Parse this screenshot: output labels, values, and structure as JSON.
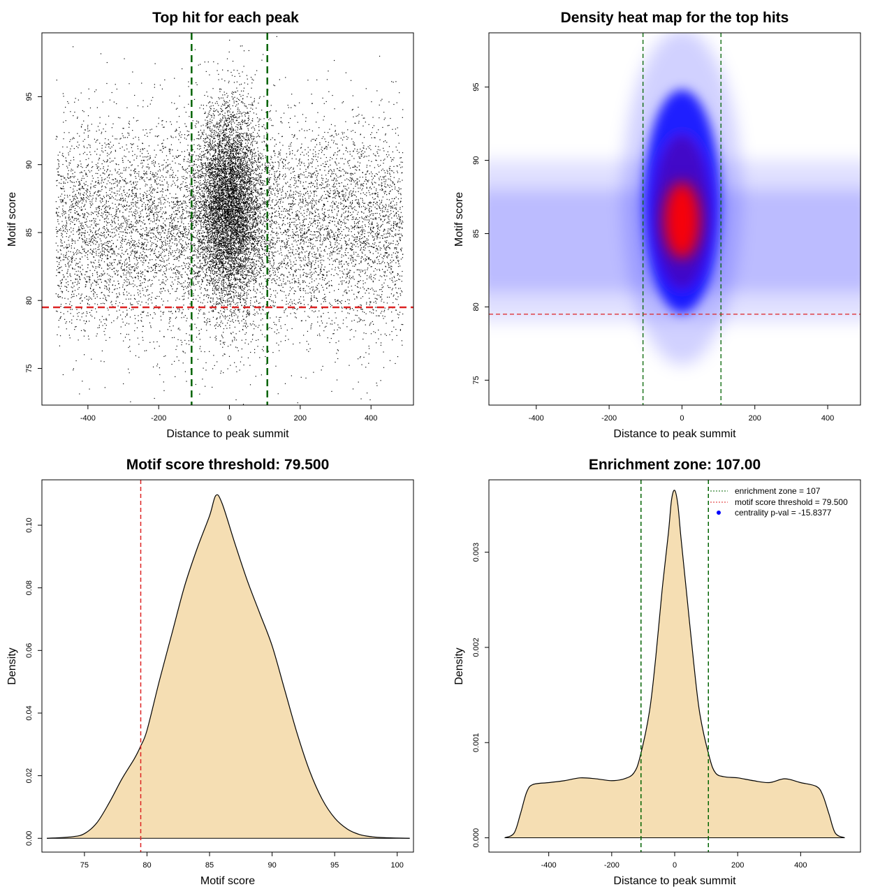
{
  "chart_data": [
    {
      "id": "scatter",
      "type": "scatter",
      "title": "Top hit for each peak",
      "xlabel": "Distance to peak summit",
      "ylabel": "Motif score",
      "xlim": [
        -530,
        520
      ],
      "ylim": [
        72.3,
        99.7
      ],
      "xticks": [
        "-400",
        "-200",
        "0",
        "200",
        "400"
      ],
      "xtick_values": [
        -400,
        -200,
        0,
        200,
        400
      ],
      "yticks": [
        "75",
        "80",
        "85",
        "90",
        "95"
      ],
      "ytick_values": [
        75,
        80,
        85,
        90,
        95
      ],
      "point_color": "#000000",
      "point_cloud": {
        "background": {
          "x_range": [
            -490,
            490
          ],
          "y_mean": 85.3,
          "y_sd": 3.9,
          "count": 9000
        },
        "center": {
          "x_mean": 0,
          "x_sd": 45,
          "y_mean": 87.0,
          "y_sd": 3.6,
          "count": 6500
        }
      },
      "vlines": [
        {
          "x": -107,
          "color": "#006400",
          "style": "dashed"
        },
        {
          "x": 107,
          "color": "#006400",
          "style": "dashed"
        }
      ],
      "hlines": [
        {
          "y": 79.5,
          "color": "#dd2222",
          "style": "dashed"
        }
      ]
    },
    {
      "id": "heatmap",
      "type": "heatmap",
      "title": "Density heat map for the top hits",
      "xlabel": "Distance to peak summit",
      "ylabel": "Motif score",
      "xlim": [
        -530,
        490
      ],
      "ylim": [
        73.3,
        98.7
      ],
      "xticks": [
        "-400",
        "-200",
        "0",
        "200",
        "400"
      ],
      "xtick_values": [
        -400,
        -200,
        0,
        200,
        400
      ],
      "yticks": [
        "75",
        "80",
        "85",
        "90",
        "95"
      ],
      "ytick_values": [
        75,
        80,
        85,
        90,
        95
      ],
      "colors": {
        "low": "#ffffff",
        "mid": "#0000ff",
        "high": "#ff0000"
      },
      "density_peak": {
        "x": 0,
        "y": 85.9
      },
      "vlines": [
        {
          "x": -107,
          "color": "#006400",
          "style": "dashed"
        },
        {
          "x": 107,
          "color": "#006400",
          "style": "dashed"
        }
      ],
      "hlines": [
        {
          "y": 79.5,
          "color": "#dd2222",
          "style": "dashed"
        }
      ]
    },
    {
      "id": "score_density",
      "type": "area",
      "title": "Motif score threshold: 79.500",
      "xlabel": "Motif score",
      "ylabel": "Density",
      "xlim": [
        71.6,
        101.3
      ],
      "ylim": [
        -0.0044,
        0.1145
      ],
      "xticks": [
        "75",
        "80",
        "85",
        "90",
        "95",
        "100"
      ],
      "xtick_values": [
        75,
        80,
        85,
        90,
        95,
        100
      ],
      "yticks": [
        "0.00",
        "0.02",
        "0.04",
        "0.06",
        "0.08",
        "0.10"
      ],
      "ytick_values": [
        0.0,
        0.02,
        0.04,
        0.06,
        0.08,
        0.1
      ],
      "fill_color": "#f5deb3",
      "x": [
        72,
        74,
        75,
        76,
        77,
        78,
        79,
        79.5,
        80,
        81,
        82,
        83,
        84,
        85,
        85.5,
        86,
        87,
        88,
        89,
        90,
        91,
        92,
        93,
        94,
        95,
        96,
        97,
        98,
        99,
        100,
        101
      ],
      "y": [
        0.0,
        0.0005,
        0.0015,
        0.005,
        0.0115,
        0.019,
        0.0255,
        0.0295,
        0.0345,
        0.0505,
        0.0655,
        0.0805,
        0.0925,
        0.103,
        0.1095,
        0.107,
        0.0945,
        0.0825,
        0.072,
        0.0615,
        0.0475,
        0.0335,
        0.0215,
        0.0125,
        0.0065,
        0.003,
        0.0012,
        0.0005,
        0.0002,
        0.0001,
        0.0
      ],
      "vlines": [
        {
          "x": 79.5,
          "color": "#dd2222",
          "style": "dashed"
        }
      ]
    },
    {
      "id": "distance_density",
      "type": "area",
      "title": "Enrichment zone: 107.00",
      "xlabel": "Distance to peak summit",
      "ylabel": "Density",
      "xlim": [
        -590,
        590
      ],
      "ylim": [
        -0.00015,
        0.00376
      ],
      "xticks": [
        "-400",
        "-200",
        "0",
        "200",
        "400"
      ],
      "xtick_values": [
        -400,
        -200,
        0,
        200,
        400
      ],
      "yticks": [
        "0.000",
        "0.001",
        "0.002",
        "0.003"
      ],
      "ytick_values": [
        0.0,
        0.001,
        0.002,
        0.003
      ],
      "fill_color": "#f5deb3",
      "x": [
        -540,
        -510,
        -490,
        -470,
        -450,
        -400,
        -350,
        -300,
        -250,
        -200,
        -160,
        -130,
        -110,
        -80,
        -60,
        -40,
        -20,
        -10,
        0,
        10,
        20,
        40,
        60,
        80,
        110,
        130,
        160,
        200,
        250,
        300,
        350,
        400,
        450,
        470,
        490,
        510,
        540
      ],
      "y": [
        0.0,
        5e-05,
        0.00025,
        0.00048,
        0.00056,
        0.00058,
        0.0006,
        0.00063,
        0.00062,
        0.0006,
        0.00062,
        0.00068,
        0.00085,
        0.00133,
        0.0019,
        0.0026,
        0.0032,
        0.00355,
        0.00365,
        0.0035,
        0.00315,
        0.0025,
        0.00185,
        0.0013,
        0.00085,
        0.00068,
        0.00064,
        0.00063,
        0.0006,
        0.00058,
        0.00062,
        0.00058,
        0.00054,
        0.00045,
        0.00025,
        5e-05,
        0.0
      ],
      "vlines": [
        {
          "x": -107,
          "color": "#006400",
          "style": "dashed"
        },
        {
          "x": 107,
          "color": "#006400",
          "style": "dashed"
        }
      ],
      "legend": {
        "position": "top-right",
        "entries": [
          {
            "label": "enrichment zone = 107",
            "color": "#006400",
            "symbol": "line-dotted"
          },
          {
            "label": "motif score threshold = 79.500",
            "color": "#dd2222",
            "symbol": "line-dotted"
          },
          {
            "label": "centrality p-val = -15.8377",
            "color": "#0000ff",
            "symbol": "point"
          }
        ]
      }
    }
  ]
}
